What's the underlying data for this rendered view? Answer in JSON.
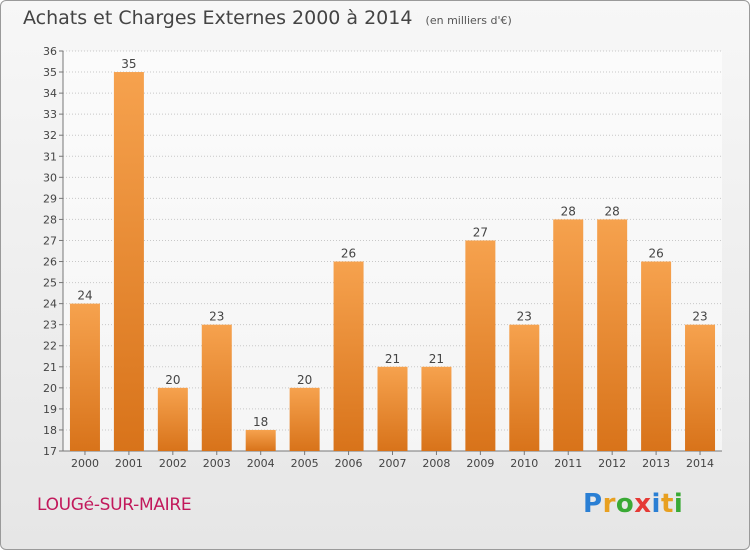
{
  "header": {
    "title": "Achats et Charges Externes 2000 à 2014",
    "subtitle": "(en milliers d'€)"
  },
  "footer": {
    "town": "LOUGé-SUR-MAIRE",
    "logo_letters": [
      {
        "ch": "P",
        "color": "#2a7fd4"
      },
      {
        "ch": "r",
        "color": "#e8a020"
      },
      {
        "ch": "o",
        "color": "#3aaa35"
      },
      {
        "ch": "x",
        "color": "#e53935"
      },
      {
        "ch": "i",
        "color": "#2a7fd4"
      },
      {
        "ch": "t",
        "color": "#e8a020"
      },
      {
        "ch": "i",
        "color": "#3aaa35"
      }
    ]
  },
  "chart_data": {
    "type": "bar",
    "title": "Achats et Charges Externes 2000 à 2014",
    "subtitle": "(en milliers d'€)",
    "categories": [
      "2000",
      "2001",
      "2002",
      "2003",
      "2004",
      "2005",
      "2006",
      "2007",
      "2008",
      "2009",
      "2010",
      "2011",
      "2012",
      "2013",
      "2014"
    ],
    "values": [
      24,
      35,
      20,
      23,
      18,
      20,
      26,
      21,
      21,
      27,
      23,
      28,
      28,
      26,
      23
    ],
    "ylim": [
      17,
      36
    ],
    "yticks": [
      17,
      18,
      19,
      20,
      21,
      22,
      23,
      24,
      25,
      26,
      27,
      28,
      29,
      30,
      31,
      32,
      33,
      34,
      35,
      36
    ],
    "grid": true,
    "bar_color_top": "#f6a24e",
    "bar_color_bottom": "#d8731a"
  }
}
